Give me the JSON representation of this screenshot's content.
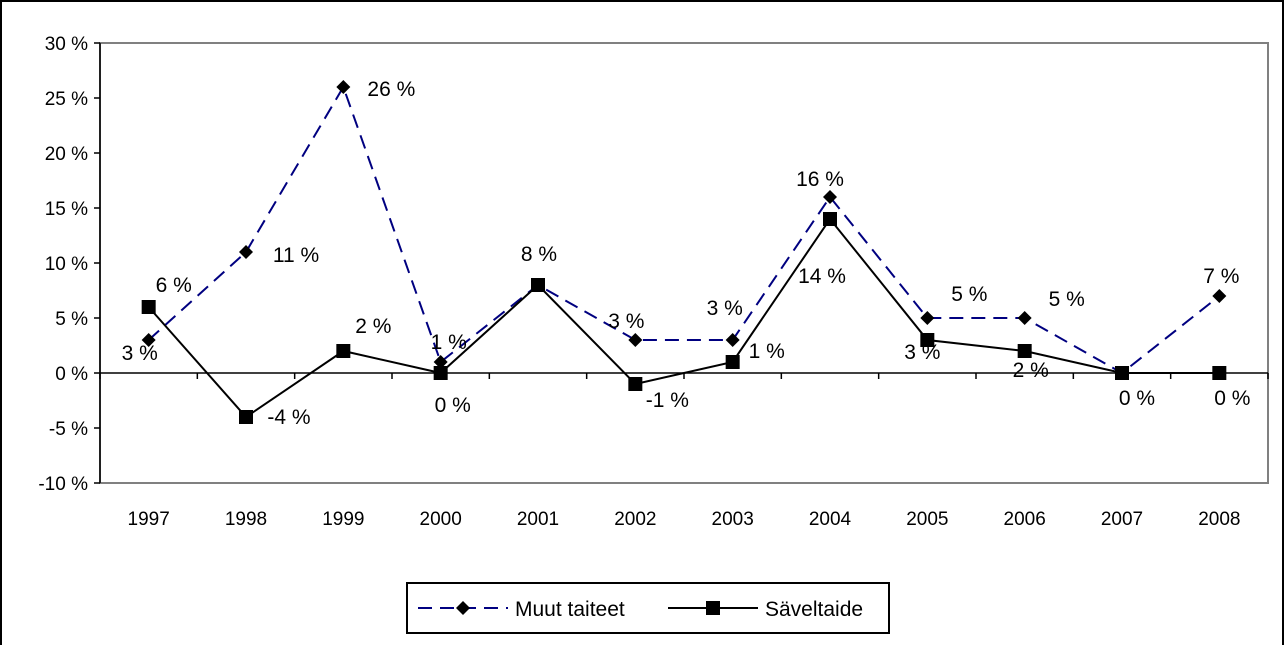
{
  "chart_data": {
    "type": "line",
    "categories": [
      "1997",
      "1998",
      "1999",
      "2000",
      "2001",
      "2002",
      "2003",
      "2004",
      "2005",
      "2006",
      "2007",
      "2008"
    ],
    "ylim": [
      -10,
      30
    ],
    "y_ticks": [
      -10,
      -5,
      0,
      5,
      10,
      15,
      20,
      25,
      30
    ],
    "y_tick_labels": [
      "-10 %",
      "-5 %",
      "0 %",
      "5 %",
      "10 %",
      "15 %",
      "20 %",
      "25 %",
      "30 %"
    ],
    "grid": false,
    "legend_position": "bottom",
    "series": [
      {
        "name": "Muut taiteet",
        "values": [
          3,
          11,
          26,
          1,
          8,
          3,
          3,
          16,
          5,
          5,
          0,
          7
        ],
        "labels": [
          "3 %",
          "11 %",
          "26 %",
          "1 %",
          "8 %",
          "3 %",
          "3 %",
          "16 %",
          "5 %",
          "5 %",
          "",
          "7 %"
        ],
        "color": "#000080",
        "line_style": "dashed",
        "marker": "diamond"
      },
      {
        "name": "Säveltaide",
        "values": [
          6,
          -4,
          2,
          0,
          8,
          -1,
          1,
          14,
          3,
          2,
          0,
          0
        ],
        "labels": [
          "6 %",
          "-4 %",
          "2 %",
          "0 %",
          "",
          "-1 %",
          "1 %",
          "14 %",
          "3 %",
          "2 %",
          "0 %",
          "0 %"
        ],
        "color": "#000000",
        "line_style": "solid",
        "marker": "square"
      }
    ]
  }
}
